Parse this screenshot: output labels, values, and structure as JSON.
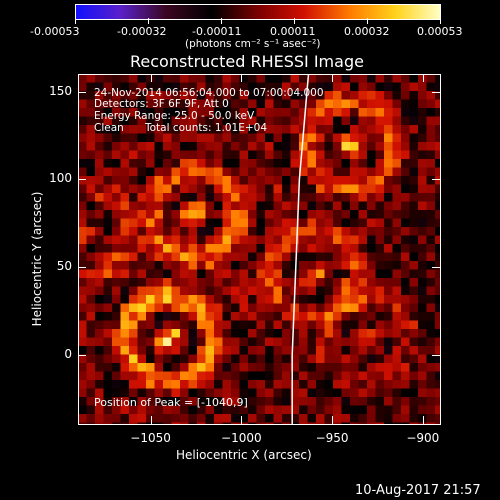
{
  "colors": {
    "background": "#000000",
    "foreground": "#ffffff",
    "limb_line": "#ffffff",
    "colormap": [
      "#1010ff",
      "#5a20c8",
      "#3a0620",
      "#000000",
      "#7a0000",
      "#d01000",
      "#ff7a00",
      "#ffd21a",
      "#ffffc8"
    ]
  },
  "colorbar": {
    "tick_labels": [
      "-0.00053",
      "-0.00032",
      "-0.00011",
      "0.00011",
      "0.00032",
      "0.00053"
    ],
    "units_text": "(photons cm⁻² s⁻¹ asec⁻²)",
    "range": [
      -0.00053,
      0.00053
    ]
  },
  "chart_data": {
    "type": "heatmap",
    "title": "Reconstructed RHESSI Image",
    "xlabel": "Heliocentric X (arcsec)",
    "ylabel": "Heliocentric Y (arcsec)",
    "xlim": [
      -1090,
      -890
    ],
    "ylim": [
      -40,
      160
    ],
    "x_ticks": [
      -1050,
      -1000,
      -950,
      -900
    ],
    "x_tick_labels": [
      "−1050",
      "−1000",
      "−950",
      "−900"
    ],
    "y_ticks": [
      0,
      50,
      100,
      150
    ],
    "y_tick_labels": [
      "0",
      "50",
      "100",
      "150"
    ],
    "annotations": [
      "24-Nov-2014 06:56:04.000 to 07:00:04.000",
      "Detectors: 3F 6F 9F, Att 0",
      "Energy Range: 25.0 - 50.0 keV",
      "Clean",
      "Total counts: 1.01E+04"
    ],
    "peak_text": "Position of Peak = [-1040,9]",
    "peak_position": [
      -1040,
      9
    ],
    "sources": [
      {
        "x": -1040,
        "y": 9,
        "intensity": 1.0
      },
      {
        "x": -1025,
        "y": 80,
        "intensity": 0.8
      },
      {
        "x": -940,
        "y": 120,
        "intensity": 0.75
      },
      {
        "x": -960,
        "y": 45,
        "intensity": 0.6
      },
      {
        "x": -1085,
        "y": 70,
        "intensity": 0.45
      },
      {
        "x": -930,
        "y": 10,
        "intensity": 0.35
      }
    ],
    "limb_curve": [
      [
        -963,
        160
      ],
      [
        -968,
        100
      ],
      [
        -970,
        50
      ],
      [
        -972,
        0
      ],
      [
        -972,
        -40
      ]
    ]
  },
  "footer": {
    "date": "10-Aug-2017 21:57"
  }
}
